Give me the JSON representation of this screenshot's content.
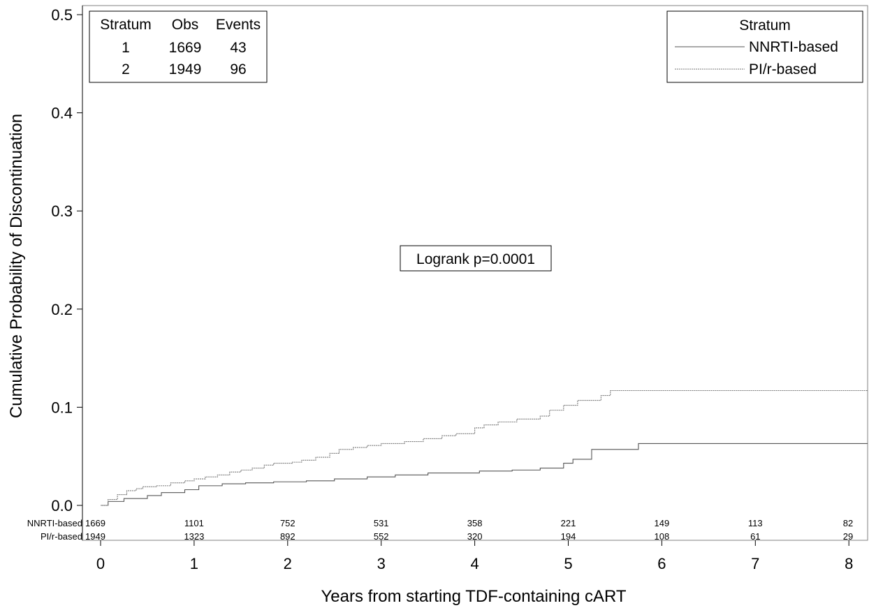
{
  "chart_data": {
    "type": "line",
    "step": true,
    "xlabel": "Years from starting TDF-containing cART",
    "ylabel": "Cumulative Probability of Discontinuation",
    "xlim": [
      -0.1,
      8.2
    ],
    "ylim": [
      0.0,
      0.5
    ],
    "xticks": [
      "0",
      "1",
      "2",
      "3",
      "4",
      "5",
      "6",
      "7",
      "8"
    ],
    "yticks": [
      "0.0",
      "0.1",
      "0.2",
      "0.3",
      "0.4",
      "0.5"
    ],
    "grid": false,
    "annotation": "Logrank p=0.0001",
    "legend": {
      "title": "Stratum",
      "position": "top-right",
      "entries": [
        "NNRTI-based",
        "PI/r-based"
      ]
    },
    "summary_table": {
      "headers": [
        "Stratum",
        "Obs",
        "Events"
      ],
      "rows": [
        [
          "1",
          "1669",
          "43"
        ],
        [
          "2",
          "1949",
          "96"
        ]
      ]
    },
    "risk_table": {
      "times": [
        0,
        1,
        2,
        3,
        4,
        5,
        6,
        7,
        8
      ],
      "rows": [
        {
          "label": "NNRTI-based",
          "values": [
            "1669",
            "1101",
            "752",
            "531",
            "358",
            "221",
            "149",
            "113",
            "82"
          ]
        },
        {
          "label": "PI/r-based",
          "values": [
            "1949",
            "1323",
            "892",
            "552",
            "320",
            "194",
            "108",
            "61",
            "29"
          ]
        }
      ]
    },
    "series": [
      {
        "name": "NNRTI-based",
        "color": "#555555",
        "dash": "",
        "x": [
          0,
          0.08,
          0.25,
          0.5,
          0.65,
          0.9,
          1.05,
          1.3,
          1.55,
          1.85,
          2.2,
          2.5,
          2.85,
          3.15,
          3.5,
          4.05,
          4.4,
          4.7,
          4.95,
          5.05,
          5.25,
          5.75,
          8.25
        ],
        "y": [
          0,
          0.004,
          0.007,
          0.01,
          0.013,
          0.016,
          0.02,
          0.022,
          0.023,
          0.024,
          0.025,
          0.027,
          0.029,
          0.031,
          0.033,
          0.035,
          0.036,
          0.038,
          0.043,
          0.047,
          0.057,
          0.063,
          0.063
        ]
      },
      {
        "name": "PI/r-based",
        "color": "#777777",
        "dash": "2,1",
        "x": [
          0,
          0.08,
          0.18,
          0.28,
          0.38,
          0.45,
          0.6,
          0.75,
          0.9,
          1.0,
          1.12,
          1.25,
          1.38,
          1.5,
          1.62,
          1.75,
          1.85,
          2.05,
          2.15,
          2.3,
          2.45,
          2.55,
          2.7,
          2.85,
          3.0,
          3.25,
          3.45,
          3.65,
          3.8,
          4.0,
          4.1,
          4.25,
          4.45,
          4.7,
          4.8,
          4.95,
          5.1,
          5.35,
          5.45,
          8.25
        ],
        "y": [
          0,
          0.006,
          0.011,
          0.015,
          0.017,
          0.019,
          0.02,
          0.023,
          0.025,
          0.027,
          0.029,
          0.031,
          0.034,
          0.036,
          0.038,
          0.041,
          0.043,
          0.044,
          0.046,
          0.049,
          0.053,
          0.057,
          0.059,
          0.061,
          0.063,
          0.065,
          0.068,
          0.071,
          0.073,
          0.079,
          0.082,
          0.085,
          0.088,
          0.091,
          0.097,
          0.102,
          0.107,
          0.112,
          0.117,
          0.117
        ]
      }
    ]
  }
}
